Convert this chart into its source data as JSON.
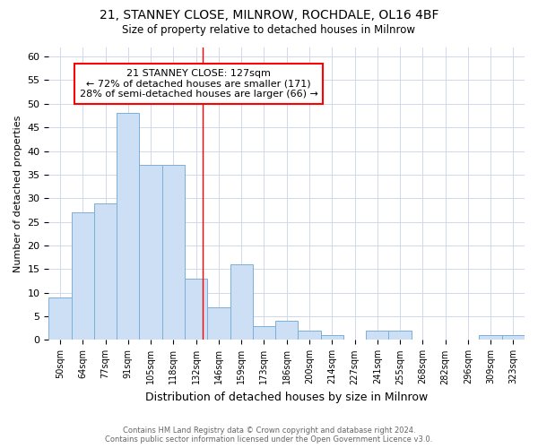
{
  "title_line1": "21, STANNEY CLOSE, MILNROW, ROCHDALE, OL16 4BF",
  "title_line2": "Size of property relative to detached houses in Milnrow",
  "xlabel": "Distribution of detached houses by size in Milnrow",
  "ylabel": "Number of detached properties",
  "footer_line1": "Contains HM Land Registry data © Crown copyright and database right 2024.",
  "footer_line2": "Contains public sector information licensed under the Open Government Licence v3.0.",
  "categories": [
    "50sqm",
    "64sqm",
    "77sqm",
    "91sqm",
    "105sqm",
    "118sqm",
    "132sqm",
    "146sqm",
    "159sqm",
    "173sqm",
    "186sqm",
    "200sqm",
    "214sqm",
    "227sqm",
    "241sqm",
    "255sqm",
    "268sqm",
    "282sqm",
    "296sqm",
    "309sqm",
    "323sqm"
  ],
  "values": [
    9,
    27,
    29,
    48,
    37,
    37,
    13,
    7,
    16,
    3,
    4,
    2,
    1,
    0,
    2,
    2,
    0,
    0,
    0,
    1,
    1
  ],
  "bar_color": "#ccdff5",
  "bar_edge_color": "#7ab0d8",
  "bar_width": 1.0,
  "property_line_x": 6.3,
  "annotation_title": "21 STANNEY CLOSE: 127sqm",
  "annotation_line2": "← 72% of detached houses are smaller (171)",
  "annotation_line3": "28% of semi-detached houses are larger (66) →",
  "annotation_box_color": "white",
  "annotation_box_edge_color": "red",
  "vline_color": "red",
  "ylim": [
    0,
    62
  ],
  "yticks": [
    0,
    5,
    10,
    15,
    20,
    25,
    30,
    35,
    40,
    45,
    50,
    55,
    60
  ],
  "grid_color": "#d0d8ec",
  "background_color": "white",
  "figsize": [
    6.0,
    5.0
  ],
  "dpi": 100
}
